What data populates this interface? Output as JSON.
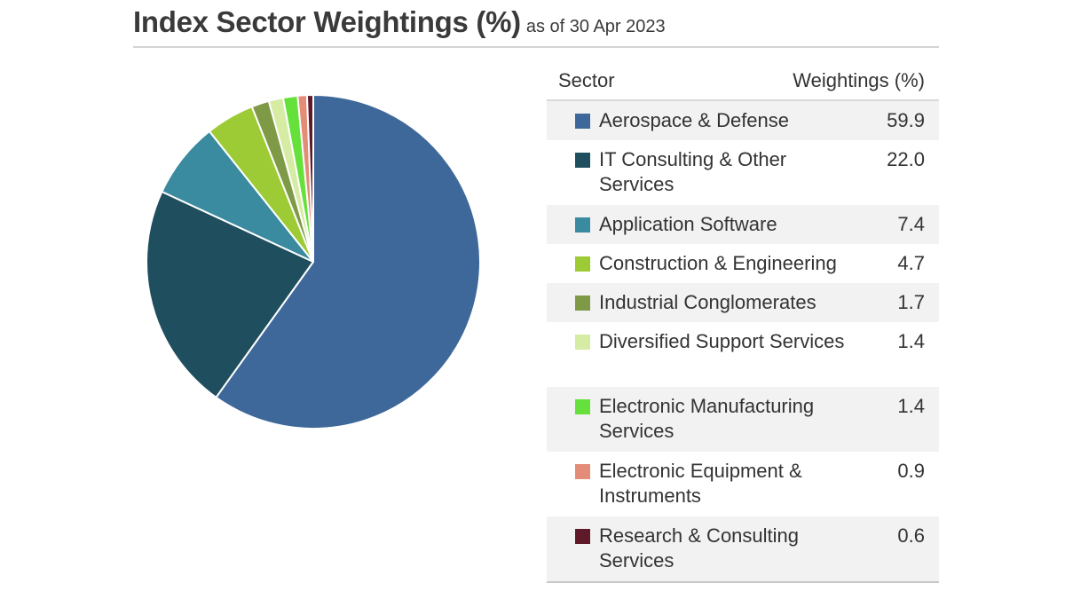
{
  "header": {
    "title": "Index Sector Weightings (%)",
    "subtitle": "as of 30 Apr 2023"
  },
  "table": {
    "col_sector": "Sector",
    "col_weight": "Weightings (%)"
  },
  "chart_data": {
    "type": "pie",
    "title": "Index Sector Weightings (%)",
    "subtitle": "as of 30 Apr 2023",
    "slices": [
      {
        "label": "Aerospace & Defense",
        "value": 59.9,
        "display": "59.9",
        "color": "#3e6899"
      },
      {
        "label": "IT Consulting & Other Services",
        "value": 22.0,
        "display": "22.0",
        "color": "#1f4f5e"
      },
      {
        "label": "Application Software",
        "value": 7.4,
        "display": "7.4",
        "color": "#3a8aa0"
      },
      {
        "label": "Construction & Engineering",
        "value": 4.7,
        "display": "4.7",
        "color": "#9ccb35"
      },
      {
        "label": "Industrial Conglomerates",
        "value": 1.7,
        "display": "1.7",
        "color": "#7f9a47"
      },
      {
        "label": "Diversified Support Services",
        "value": 1.4,
        "display": "1.4",
        "color": "#d6eba4"
      },
      {
        "label": "Electronic Manufacturing Services",
        "value": 1.4,
        "display": "1.4",
        "color": "#66e03a"
      },
      {
        "label": "Electronic Equipment & Instruments",
        "value": 0.9,
        "display": "0.9",
        "color": "#e38c77"
      },
      {
        "label": "Research & Consulting Services",
        "value": 0.6,
        "display": "0.6",
        "color": "#5f1a2a"
      }
    ]
  }
}
